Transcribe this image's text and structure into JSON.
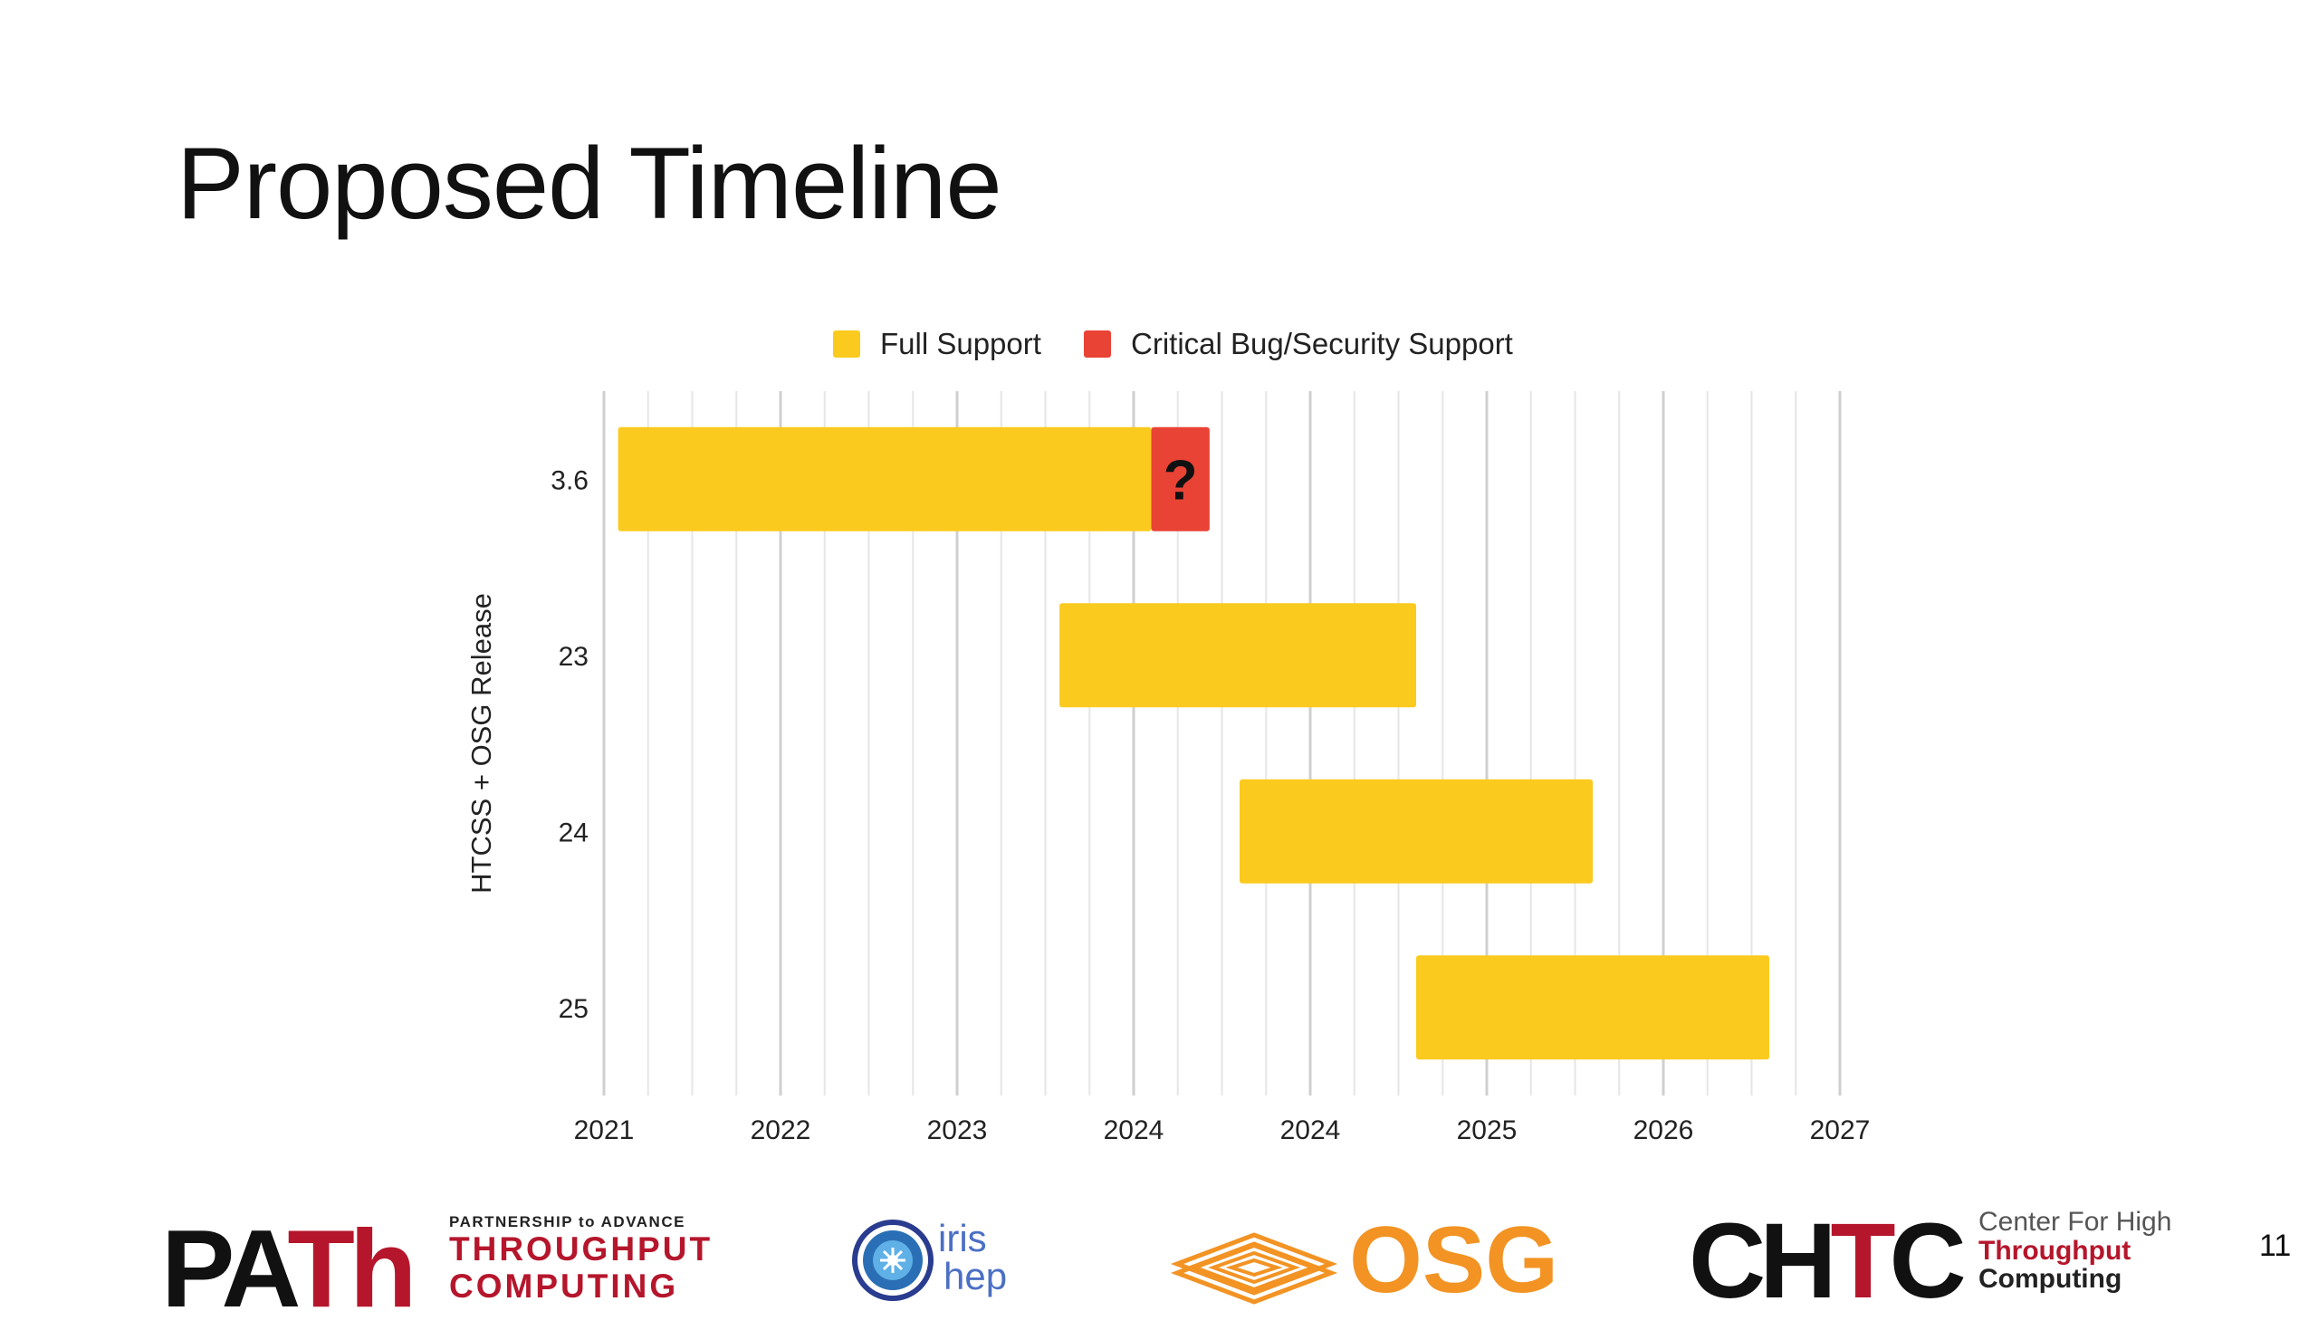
{
  "slide": {
    "title": "Proposed Timeline",
    "page_number": "11"
  },
  "legend": {
    "items": [
      {
        "label": "Full Support",
        "color": "#FBCA1F"
      },
      {
        "label": "Critical Bug/Security Support",
        "color": "#E94335"
      }
    ],
    "position": "top-center"
  },
  "chart_data": {
    "type": "bar",
    "orientation": "horizontal",
    "stacked": true,
    "title": "",
    "xlabel": "",
    "ylabel": "HTCSS + OSG Release",
    "categories": [
      "3.6",
      "23",
      "24",
      "25"
    ],
    "x_tick_labels": [
      "2021",
      "2022",
      "2023",
      "2024",
      "2024",
      "2025",
      "2026",
      "2027"
    ],
    "xlim": [
      2021.0,
      2028.0
    ],
    "grid": true,
    "grid_minor_per_major": 4,
    "series": [
      {
        "name": "Full Support",
        "color": "#FBCA1F",
        "ranges": [
          [
            2021.08,
            2024.1
          ],
          [
            2023.58,
            2025.6
          ],
          [
            2024.6,
            2026.6
          ],
          [
            2025.6,
            2027.6
          ]
        ]
      },
      {
        "name": "Critical Bug/Security Support",
        "color": "#E94335",
        "ranges": [
          [
            2024.1,
            2024.43
          ],
          null,
          null,
          null
        ],
        "annotation": "?"
      }
    ]
  },
  "footer": {
    "path_logo": {
      "mark": "PATh",
      "line1": "PARTNERSHIP to ADVANCE",
      "line2": "THROUGHPUT",
      "line3": "COMPUTING"
    },
    "iris_logo": {
      "line1": "iris",
      "line2": "hep"
    },
    "osg_logo": {
      "text": "OSG",
      "color": "#F29323"
    },
    "chtc_logo": {
      "mark": "CHTC",
      "line1": "Center For High",
      "line2": "Throughput",
      "line3": "Computing"
    }
  }
}
